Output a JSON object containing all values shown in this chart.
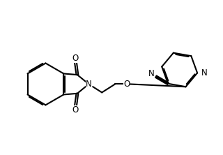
{
  "bg_color": "#ffffff",
  "line_color": "#000000",
  "line_width": 1.5,
  "font_size": 8.5,
  "figsize": [
    3.2,
    2.22
  ],
  "dpi": 100,
  "xlim": [
    0,
    10
  ],
  "ylim": [
    0,
    7
  ]
}
